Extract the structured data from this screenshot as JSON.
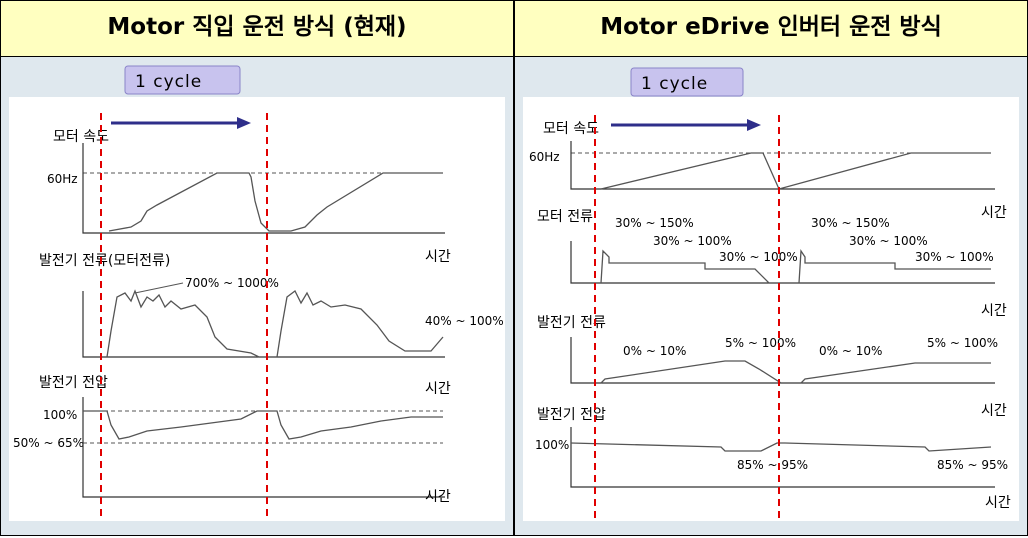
{
  "left": {
    "title": "Motor 직입 운전 방식 (현재)",
    "cycle": "1 cycle",
    "speed_label": "모터 속도",
    "speed_tick": "60Hz",
    "current_label": "발전기 전류(모터전류)",
    "current_ann1": "700% ~ 1000%",
    "current_ann2": "40% ~ 100%",
    "voltage_label": "발전기 전압",
    "voltage_tick1": "100%",
    "voltage_tick2": "50% ~ 65%",
    "time1": "시간",
    "time2": "시간",
    "time3": "시간"
  },
  "right": {
    "title": "Motor eDrive 인버터  운전 방식",
    "cycle": "1 cycle",
    "speed_label": "모터 속도",
    "speed_tick": "60Hz",
    "motor_current_label": "모터 전류",
    "mc_ann1": "30% ~ 150%",
    "mc_ann2": "30% ~ 100%",
    "mc_ann3": "30% ~ 100%",
    "mc_ann4": "30% ~ 150%",
    "mc_ann5": "30% ~ 100%",
    "mc_ann6": "30% ~ 100%",
    "gen_current_label": "발전기 전류",
    "gc_ann1": "0% ~ 10%",
    "gc_ann2": "5% ~ 100%",
    "gc_ann3": "0% ~ 10%",
    "gc_ann4": "5% ~ 100%",
    "voltage_label": "발전기 전압",
    "voltage_tick": "100%",
    "v_ann1": "85% ~ 95%",
    "v_ann2": "85% ~ 95%",
    "time1": "시간",
    "time2": "시간",
    "time3": "시간",
    "time4": "시간"
  },
  "colors": {
    "header_bg": "#ffffc0",
    "cycle_box": "#c8c3ee",
    "arrow": "#2e2e8a",
    "cycle_marker": "#e00000"
  }
}
